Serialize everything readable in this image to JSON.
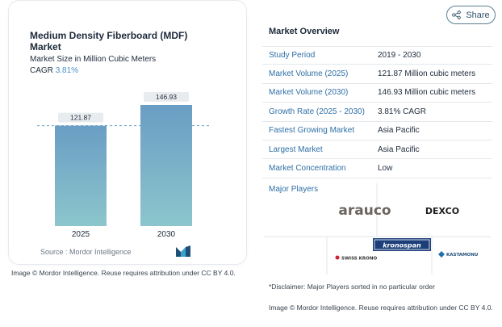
{
  "chart": {
    "title": "Medium Density Fiberboard (MDF) Market",
    "subtitle": "Market Size in Million Cubic Meters",
    "cagr_label": "CAGR",
    "cagr_value": "3.81%",
    "source": "Source : Mordor Intelligence",
    "attribution": "Image © Mordor Intelligence. Reuse requires attribution under CC BY 4.0.",
    "bar_color": "#6a9dc4",
    "bar_color_bottom": "#8cc6cc",
    "label_bg": "#e9ecef"
  },
  "chart_data": {
    "type": "bar",
    "categories": [
      "2025",
      "2030"
    ],
    "values": [
      121.87,
      146.93
    ],
    "data_labels": [
      "121.87",
      "146.93"
    ],
    "title": "Medium Density Fiberboard (MDF) Market",
    "xlabel": "",
    "ylabel": "Market Size in Million Cubic Meters",
    "ylim": [
      0,
      146.93
    ],
    "grid": false,
    "reference_line": 121.87
  },
  "share": {
    "label": "Share",
    "icon": "share-icon"
  },
  "overview": {
    "title": "Market Overview",
    "rows": [
      {
        "label": "Study Period",
        "value": "2019 - 2030"
      },
      {
        "label": "Market Volume (2025)",
        "value": "121.87 Million cubic meters"
      },
      {
        "label": "Market Volume (2030)",
        "value": "146.93 Million cubic meters"
      },
      {
        "label": "Growth Rate (2025 - 2030)",
        "value": "3.81% CAGR"
      },
      {
        "label": "Fastest Growing Market",
        "value": "Asia Pacific"
      },
      {
        "label": "Largest Market",
        "value": "Asia Pacific"
      },
      {
        "label": "Market Concentration",
        "value": "Low"
      }
    ]
  },
  "players": {
    "title": "Major Players",
    "logos": [
      "arauco",
      "DEXCO",
      "SWISS KRONO",
      "kronospan",
      "KASTAMONU"
    ]
  },
  "disclaimer": "*Disclaimer: Major Players sorted in no particular order",
  "attribution_right": "Image © Mordor Intelligence. Reuse requires attribution under CC BY 4.0."
}
